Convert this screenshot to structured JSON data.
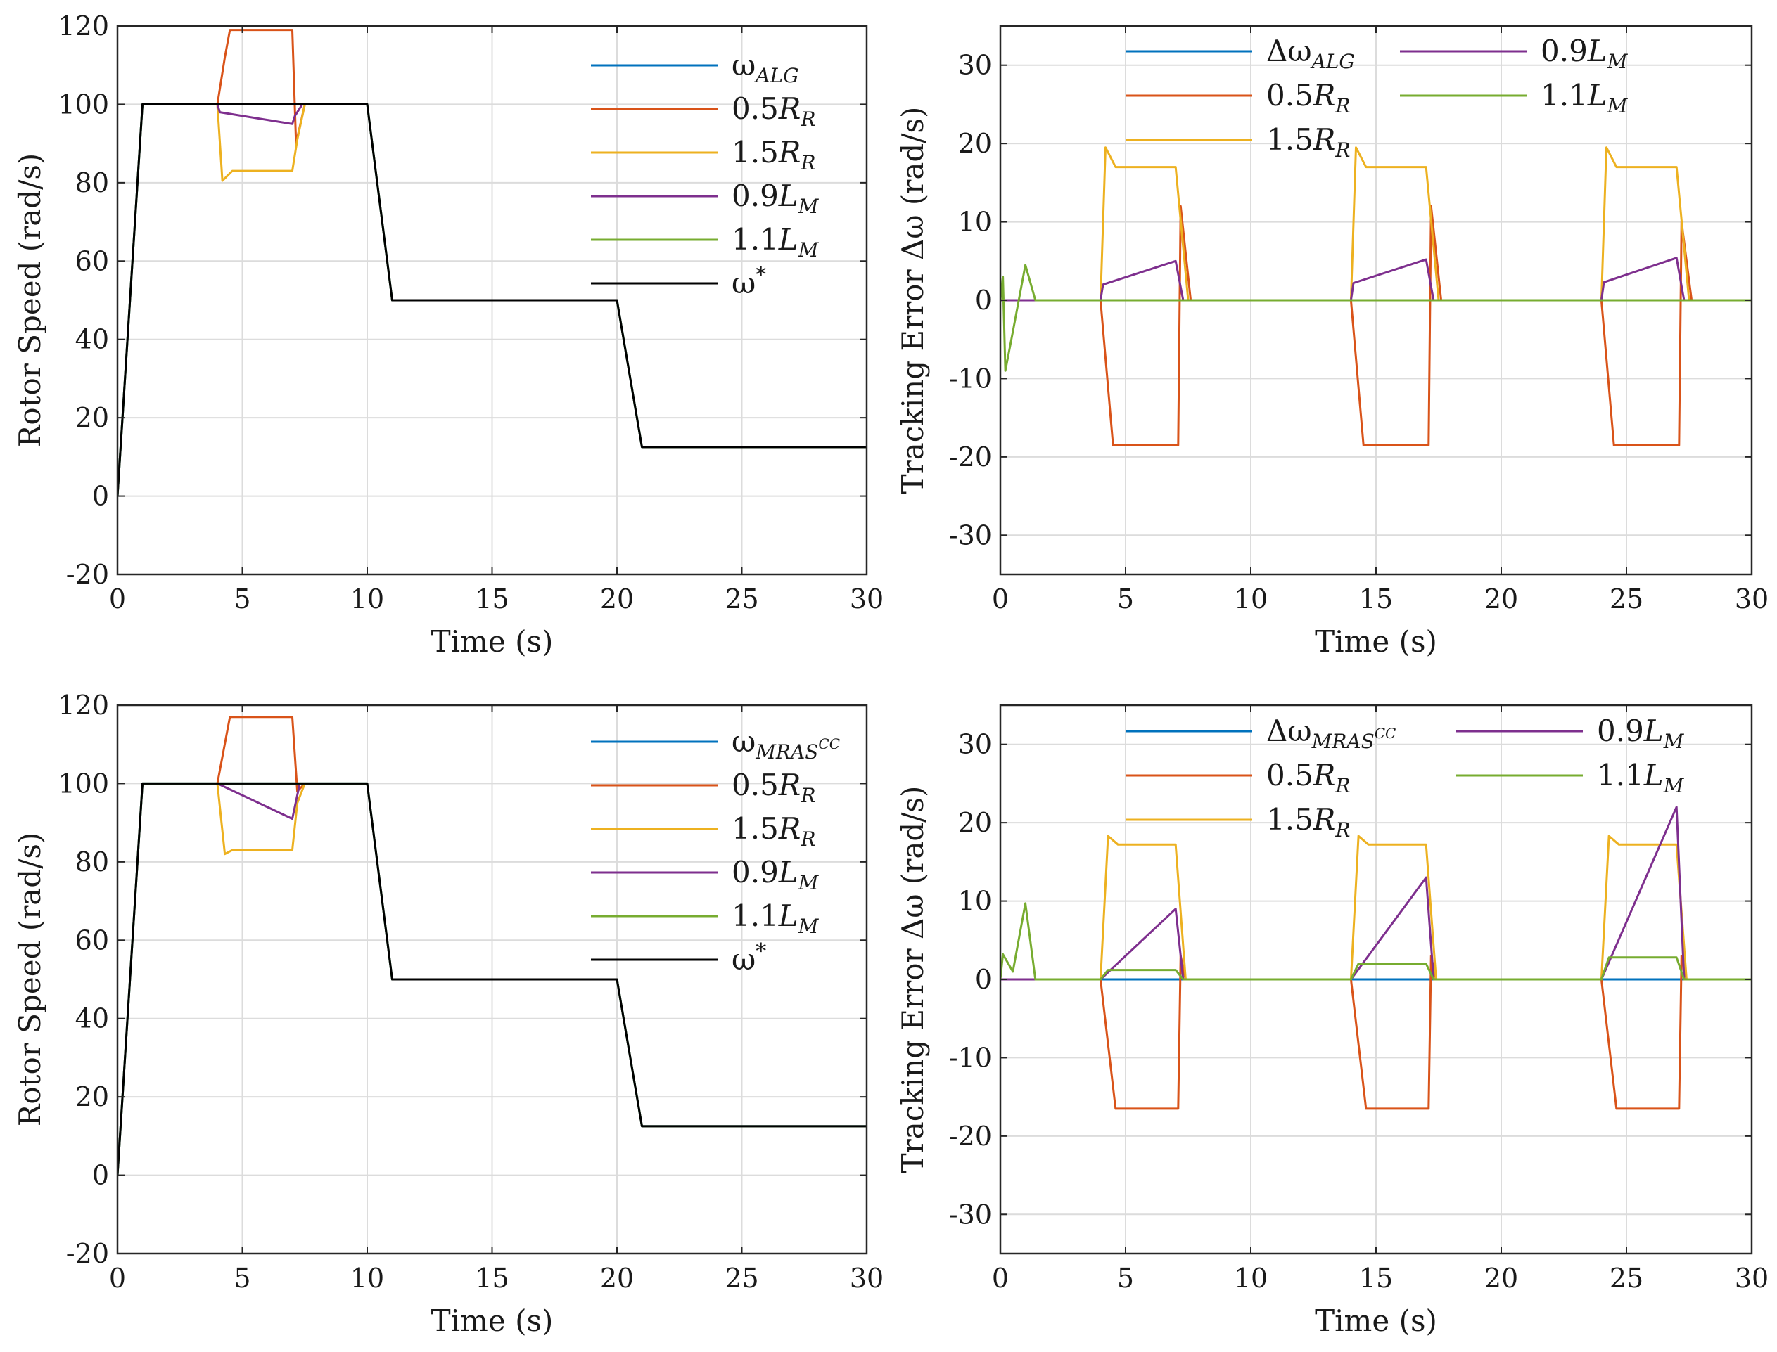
{
  "colors": {
    "blue": "#0072BD",
    "orange": "#D95319",
    "yellow": "#EDB120",
    "purple": "#7E2F8E",
    "green": "#77AC30",
    "black": "#000000",
    "grid": "#dcdcdc",
    "axis": "#262626"
  },
  "chart_data": [
    {
      "id": "speed-alg",
      "type": "line",
      "xlabel": "Time (s)",
      "ylabel": "Rotor Speed (rad/s)",
      "xlim": [
        0,
        30
      ],
      "ylim": [
        -20,
        120
      ],
      "xticks": [
        "0",
        "5",
        "10",
        "15",
        "20",
        "25",
        "30"
      ],
      "yticks": [
        "-20",
        "0",
        "20",
        "40",
        "60",
        "80",
        "100",
        "120"
      ],
      "grid": true,
      "legend_position": "top-right",
      "series": [
        {
          "name": "ω",
          "sub": "ALG",
          "color": "blue",
          "points": [
            [
              0,
              0
            ],
            [
              1,
              100
            ],
            [
              10,
              100
            ],
            [
              11,
              50
            ],
            [
              20,
              50
            ],
            [
              21,
              12.5
            ],
            [
              30,
              12.5
            ]
          ]
        },
        {
          "name": "0.5",
          "nameitalic": "R",
          "sub": "R",
          "color": "orange",
          "points": [
            [
              4,
              100
            ],
            [
              4.3,
              112
            ],
            [
              4.5,
              119
            ],
            [
              7,
              119
            ],
            [
              7.15,
              90
            ],
            [
              7.5,
              100
            ]
          ]
        },
        {
          "name": "1.5",
          "nameitalic": "R",
          "sub": "R",
          "color": "yellow",
          "points": [
            [
              4,
              100
            ],
            [
              4.2,
              80.5
            ],
            [
              4.6,
              83
            ],
            [
              7,
              83
            ],
            [
              7.2,
              91
            ],
            [
              7.5,
              100
            ]
          ]
        },
        {
          "name": "0.9",
          "nameitalic": "L",
          "sub": "M",
          "color": "purple",
          "points": [
            [
              4,
              100
            ],
            [
              4.1,
              98
            ],
            [
              7,
              95
            ],
            [
              7.1,
              97
            ],
            [
              7.4,
              100
            ]
          ]
        },
        {
          "name": "1.1",
          "nameitalic": "L",
          "sub": "M",
          "color": "green",
          "points": [
            [
              0,
              0
            ],
            [
              1,
              100
            ],
            [
              10,
              100
            ],
            [
              11,
              50
            ],
            [
              20,
              50
            ],
            [
              21,
              12.5
            ],
            [
              30,
              12.5
            ]
          ]
        },
        {
          "name": "ω",
          "sup": "*",
          "color": "black",
          "points": [
            [
              0,
              0
            ],
            [
              1,
              100
            ],
            [
              10,
              100
            ],
            [
              11,
              50
            ],
            [
              20,
              50
            ],
            [
              21,
              12.5
            ],
            [
              30,
              12.5
            ]
          ]
        }
      ]
    },
    {
      "id": "error-alg",
      "type": "line",
      "xlabel": "Time (s)",
      "ylabel": "Tracking Error Δω (rad/s)",
      "xlim": [
        0,
        30
      ],
      "ylim": [
        -35,
        35
      ],
      "xticks": [
        "0",
        "5",
        "10",
        "15",
        "20",
        "25",
        "30"
      ],
      "yticks": [
        "-30",
        "-20",
        "-10",
        "0",
        "10",
        "20",
        "30"
      ],
      "grid": true,
      "legend_position": "top",
      "series": [
        {
          "name": "Δω",
          "sub": "ALG",
          "color": "blue",
          "points": [
            [
              0,
              0
            ],
            [
              30,
              0
            ]
          ]
        },
        {
          "name": "0.5",
          "nameitalic": "R",
          "sub": "R",
          "color": "orange",
          "points": [
            [
              0,
              0
            ],
            [
              4,
              0
            ],
            [
              4.5,
              -18.5
            ],
            [
              7.1,
              -18.5
            ],
            [
              7.2,
              12
            ],
            [
              7.6,
              0
            ],
            [
              14,
              0
            ],
            [
              14.5,
              -18.5
            ],
            [
              17.1,
              -18.5
            ],
            [
              17.2,
              12
            ],
            [
              17.6,
              0
            ],
            [
              24,
              0
            ],
            [
              24.5,
              -18.5
            ],
            [
              27.1,
              -18.5
            ],
            [
              27.2,
              10
            ],
            [
              27.6,
              0
            ],
            [
              30,
              0
            ]
          ]
        },
        {
          "name": "1.5",
          "nameitalic": "R",
          "sub": "R",
          "color": "yellow",
          "points": [
            [
              0,
              0
            ],
            [
              4,
              0
            ],
            [
              4.2,
              19.5
            ],
            [
              4.6,
              17
            ],
            [
              7,
              17
            ],
            [
              7.5,
              0
            ],
            [
              14,
              0
            ],
            [
              14.2,
              19.5
            ],
            [
              14.6,
              17
            ],
            [
              17,
              17
            ],
            [
              17.5,
              0
            ],
            [
              24,
              0
            ],
            [
              24.2,
              19.5
            ],
            [
              24.6,
              17
            ],
            [
              27,
              17
            ],
            [
              27.5,
              0
            ],
            [
              30,
              0
            ]
          ]
        },
        {
          "name": "0.9",
          "nameitalic": "L",
          "sub": "M",
          "color": "purple",
          "points": [
            [
              0,
              0
            ],
            [
              4,
              0
            ],
            [
              4.1,
              2
            ],
            [
              7,
              5
            ],
            [
              7.3,
              0
            ],
            [
              14,
              0
            ],
            [
              14.1,
              2.2
            ],
            [
              17,
              5.2
            ],
            [
              17.3,
              0
            ],
            [
              24,
              0
            ],
            [
              24.1,
              2.3
            ],
            [
              27,
              5.4
            ],
            [
              27.3,
              0
            ],
            [
              30,
              0
            ]
          ]
        },
        {
          "name": "1.1",
          "nameitalic": "L",
          "sub": "M",
          "color": "green",
          "points": [
            [
              0,
              0
            ],
            [
              0.1,
              3
            ],
            [
              0.2,
              -9
            ],
            [
              0.5,
              -4
            ],
            [
              1,
              4.5
            ],
            [
              1.4,
              0
            ],
            [
              30,
              0
            ]
          ]
        }
      ]
    },
    {
      "id": "speed-mras",
      "type": "line",
      "xlabel": "Time (s)",
      "ylabel": "Rotor Speed (rad/s)",
      "xlim": [
        0,
        30
      ],
      "ylim": [
        -20,
        120
      ],
      "xticks": [
        "0",
        "5",
        "10",
        "15",
        "20",
        "25",
        "30"
      ],
      "yticks": [
        "-20",
        "0",
        "20",
        "40",
        "60",
        "80",
        "100",
        "120"
      ],
      "grid": true,
      "legend_position": "top-right",
      "series": [
        {
          "name": "ω",
          "sub": "MRAS",
          "subsup": "CC",
          "color": "blue",
          "points": [
            [
              0,
              0
            ],
            [
              1,
              100
            ],
            [
              10,
              100
            ],
            [
              11,
              50
            ],
            [
              20,
              50
            ],
            [
              21,
              12.5
            ],
            [
              30,
              12.5
            ]
          ]
        },
        {
          "name": "0.5",
          "nameitalic": "R",
          "sub": "R",
          "color": "orange",
          "points": [
            [
              4,
              100
            ],
            [
              4.5,
              117
            ],
            [
              7,
              117
            ],
            [
              7.2,
              98
            ],
            [
              7.5,
              100
            ]
          ]
        },
        {
          "name": "1.5",
          "nameitalic": "R",
          "sub": "R",
          "color": "yellow",
          "points": [
            [
              4,
              100
            ],
            [
              4.3,
              82
            ],
            [
              4.6,
              83
            ],
            [
              7,
              83
            ],
            [
              7.2,
              95
            ],
            [
              7.5,
              100
            ]
          ]
        },
        {
          "name": "0.9",
          "nameitalic": "L",
          "sub": "M",
          "color": "purple",
          "points": [
            [
              4,
              100
            ],
            [
              7,
              91
            ],
            [
              7.3,
              100
            ]
          ]
        },
        {
          "name": "1.1",
          "nameitalic": "L",
          "sub": "M",
          "color": "green",
          "points": [
            [
              0,
              0
            ],
            [
              1,
              100
            ],
            [
              10,
              100
            ],
            [
              11,
              50
            ],
            [
              20,
              50
            ],
            [
              21,
              12.5
            ],
            [
              30,
              12.5
            ]
          ]
        },
        {
          "name": "ω",
          "sup": "*",
          "color": "black",
          "points": [
            [
              0,
              0
            ],
            [
              1,
              100
            ],
            [
              10,
              100
            ],
            [
              11,
              50
            ],
            [
              20,
              50
            ],
            [
              21,
              12.5
            ],
            [
              30,
              12.5
            ]
          ]
        }
      ]
    },
    {
      "id": "error-mras",
      "type": "line",
      "xlabel": "Time (s)",
      "ylabel": "Tracking Error Δω (rad/s)",
      "xlim": [
        0,
        30
      ],
      "ylim": [
        -35,
        35
      ],
      "xticks": [
        "0",
        "5",
        "10",
        "15",
        "20",
        "25",
        "30"
      ],
      "yticks": [
        "-30",
        "-20",
        "-10",
        "0",
        "10",
        "20",
        "30"
      ],
      "grid": true,
      "legend_position": "top",
      "series": [
        {
          "name": "Δω",
          "sub": "MRAS",
          "subsup": "CC",
          "color": "blue",
          "points": [
            [
              0,
              0
            ],
            [
              30,
              0
            ]
          ]
        },
        {
          "name": "0.5",
          "nameitalic": "R",
          "sub": "R",
          "color": "orange",
          "points": [
            [
              0,
              0
            ],
            [
              4,
              0
            ],
            [
              4.6,
              -16.5
            ],
            [
              7.1,
              -16.5
            ],
            [
              7.2,
              3
            ],
            [
              7.4,
              0
            ],
            [
              14,
              0
            ],
            [
              14.6,
              -16.5
            ],
            [
              17.1,
              -16.5
            ],
            [
              17.2,
              3
            ],
            [
              17.4,
              0
            ],
            [
              24,
              0
            ],
            [
              24.6,
              -16.5
            ],
            [
              27.1,
              -16.5
            ],
            [
              27.2,
              3
            ],
            [
              27.4,
              0
            ],
            [
              30,
              0
            ]
          ]
        },
        {
          "name": "1.5",
          "nameitalic": "R",
          "sub": "R",
          "color": "yellow",
          "points": [
            [
              0,
              0
            ],
            [
              4,
              0
            ],
            [
              4.3,
              18.3
            ],
            [
              4.7,
              17.2
            ],
            [
              7,
              17.2
            ],
            [
              7.4,
              0
            ],
            [
              14,
              0
            ],
            [
              14.3,
              18.3
            ],
            [
              14.7,
              17.2
            ],
            [
              17,
              17.2
            ],
            [
              17.4,
              0
            ],
            [
              24,
              0
            ],
            [
              24.3,
              18.3
            ],
            [
              24.7,
              17.2
            ],
            [
              27,
              17.2
            ],
            [
              27.4,
              0
            ],
            [
              30,
              0
            ]
          ]
        },
        {
          "name": "0.9",
          "nameitalic": "L",
          "sub": "M",
          "color": "purple",
          "points": [
            [
              0,
              0
            ],
            [
              4,
              0
            ],
            [
              7,
              9
            ],
            [
              7.3,
              0
            ],
            [
              14,
              0
            ],
            [
              17,
              13
            ],
            [
              17.3,
              0
            ],
            [
              24,
              0
            ],
            [
              27,
              22
            ],
            [
              27.3,
              0
            ],
            [
              30,
              0
            ]
          ]
        },
        {
          "name": "1.1",
          "nameitalic": "L",
          "sub": "M",
          "color": "green",
          "points": [
            [
              0,
              0
            ],
            [
              0.1,
              3.2
            ],
            [
              0.5,
              1
            ],
            [
              1,
              9.7
            ],
            [
              1.4,
              0
            ],
            [
              4,
              0
            ],
            [
              4.3,
              1.2
            ],
            [
              7,
              1.2
            ],
            [
              7.3,
              0
            ],
            [
              14,
              0
            ],
            [
              14.3,
              2
            ],
            [
              17,
              2
            ],
            [
              17.3,
              0
            ],
            [
              24,
              0
            ],
            [
              24.3,
              2.8
            ],
            [
              27,
              2.8
            ],
            [
              27.3,
              0
            ],
            [
              30,
              0
            ]
          ]
        }
      ]
    }
  ]
}
